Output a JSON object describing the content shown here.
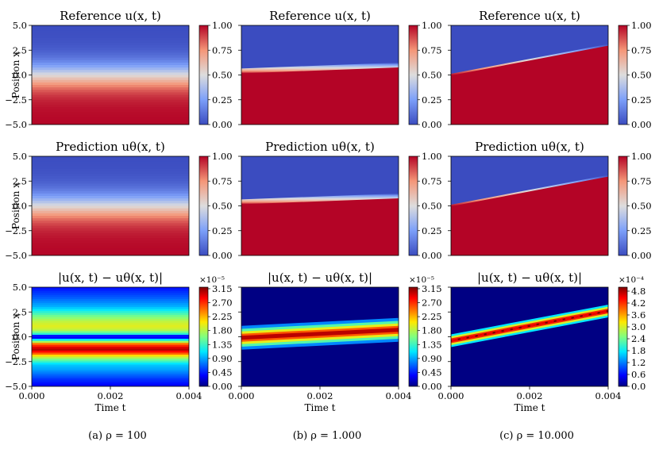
{
  "caption_a": "(a) ρ = 100",
  "caption_b": "(b) ρ = 1.000",
  "caption_c": "(c) ρ = 10.000",
  "chart_data": {
    "type": "heatmap",
    "panels": [
      {
        "col": 0,
        "row": 0,
        "title": "Reference u(x, t)",
        "field": "ref",
        "rho": "100",
        "interface_x_start": 0.0,
        "interface_x_end": 0.0,
        "width": 3.0,
        "cbar_ticks": [
          "0.00",
          "0.25",
          "0.50",
          "0.75",
          "1.00"
        ],
        "cbar_exponent": "",
        "ylabel": "Position x"
      },
      {
        "col": 1,
        "row": 0,
        "title": "Reference u(x, t)",
        "field": "ref",
        "rho": "1.000",
        "interface_x_start": 0.3,
        "interface_x_end": 0.9,
        "width": 0.35,
        "cbar_ticks": [
          "0.00",
          "0.25",
          "0.50",
          "0.75",
          "1.00"
        ],
        "cbar_exponent": "",
        "ylabel": ""
      },
      {
        "col": 2,
        "row": 0,
        "title": "Reference u(x, t)",
        "field": "ref",
        "rho": "10.000",
        "interface_x_start": 0.0,
        "interface_x_end": 3.0,
        "width": 0.12,
        "cbar_ticks": [
          "0.00",
          "0.25",
          "0.50",
          "0.75",
          "1.00"
        ],
        "cbar_exponent": "",
        "ylabel": ""
      },
      {
        "col": 0,
        "row": 1,
        "title": "Prediction uθ(x, t)",
        "field": "pred",
        "rho": "100",
        "interface_x_start": 0.0,
        "interface_x_end": 0.0,
        "width": 3.0,
        "cbar_ticks": [
          "0.00",
          "0.25",
          "0.50",
          "0.75",
          "1.00"
        ],
        "cbar_exponent": "",
        "ylabel": "Position x"
      },
      {
        "col": 1,
        "row": 1,
        "title": "Prediction uθ(x, t)",
        "field": "pred",
        "rho": "1.000",
        "interface_x_start": 0.3,
        "interface_x_end": 0.9,
        "width": 0.35,
        "cbar_ticks": [
          "0.00",
          "0.25",
          "0.50",
          "0.75",
          "1.00"
        ],
        "cbar_exponent": "",
        "ylabel": ""
      },
      {
        "col": 2,
        "row": 1,
        "title": "Prediction uθ(x, t)",
        "field": "pred",
        "rho": "10.000",
        "interface_x_start": 0.0,
        "interface_x_end": 3.0,
        "width": 0.12,
        "cbar_ticks": [
          "0.00",
          "0.25",
          "0.50",
          "0.75",
          "1.00"
        ],
        "cbar_exponent": "",
        "ylabel": ""
      },
      {
        "col": 0,
        "row": 2,
        "title": "|u(x, t) − uθ(x, t)|",
        "field": "err_a",
        "rho": "100",
        "cbar_ticks": [
          "0.00",
          "0.45",
          "0.90",
          "1.35",
          "1.80",
          "2.25",
          "2.70",
          "3.15"
        ],
        "cbar_exponent": "×10⁻⁵",
        "ylabel": "Position x"
      },
      {
        "col": 1,
        "row": 2,
        "title": "|u(x, t) − uθ(x, t)|",
        "field": "err_b",
        "rho": "1.000",
        "cbar_ticks": [
          "0.00",
          "0.45",
          "0.90",
          "1.35",
          "1.80",
          "2.25",
          "2.70",
          "3.15"
        ],
        "cbar_exponent": "×10⁻⁵",
        "ylabel": ""
      },
      {
        "col": 2,
        "row": 2,
        "title": "|u(x, t) − uθ(x, t)|",
        "field": "err_c",
        "rho": "10.000",
        "cbar_ticks": [
          "0.0",
          "0.6",
          "1.2",
          "1.8",
          "2.4",
          "3.0",
          "3.6",
          "4.2",
          "4.8"
        ],
        "cbar_exponent": "×10⁻⁴",
        "ylabel": ""
      }
    ],
    "y_ticks": [
      "5.0",
      "2.5",
      "0.0",
      "−2.5",
      "−5.0"
    ],
    "y_range": [
      -5.0,
      5.0
    ],
    "x_ticks": [
      "0.000",
      "0.002",
      "0.004"
    ],
    "x_range": [
      0.0,
      0.004
    ],
    "xlabel": "Time t"
  }
}
